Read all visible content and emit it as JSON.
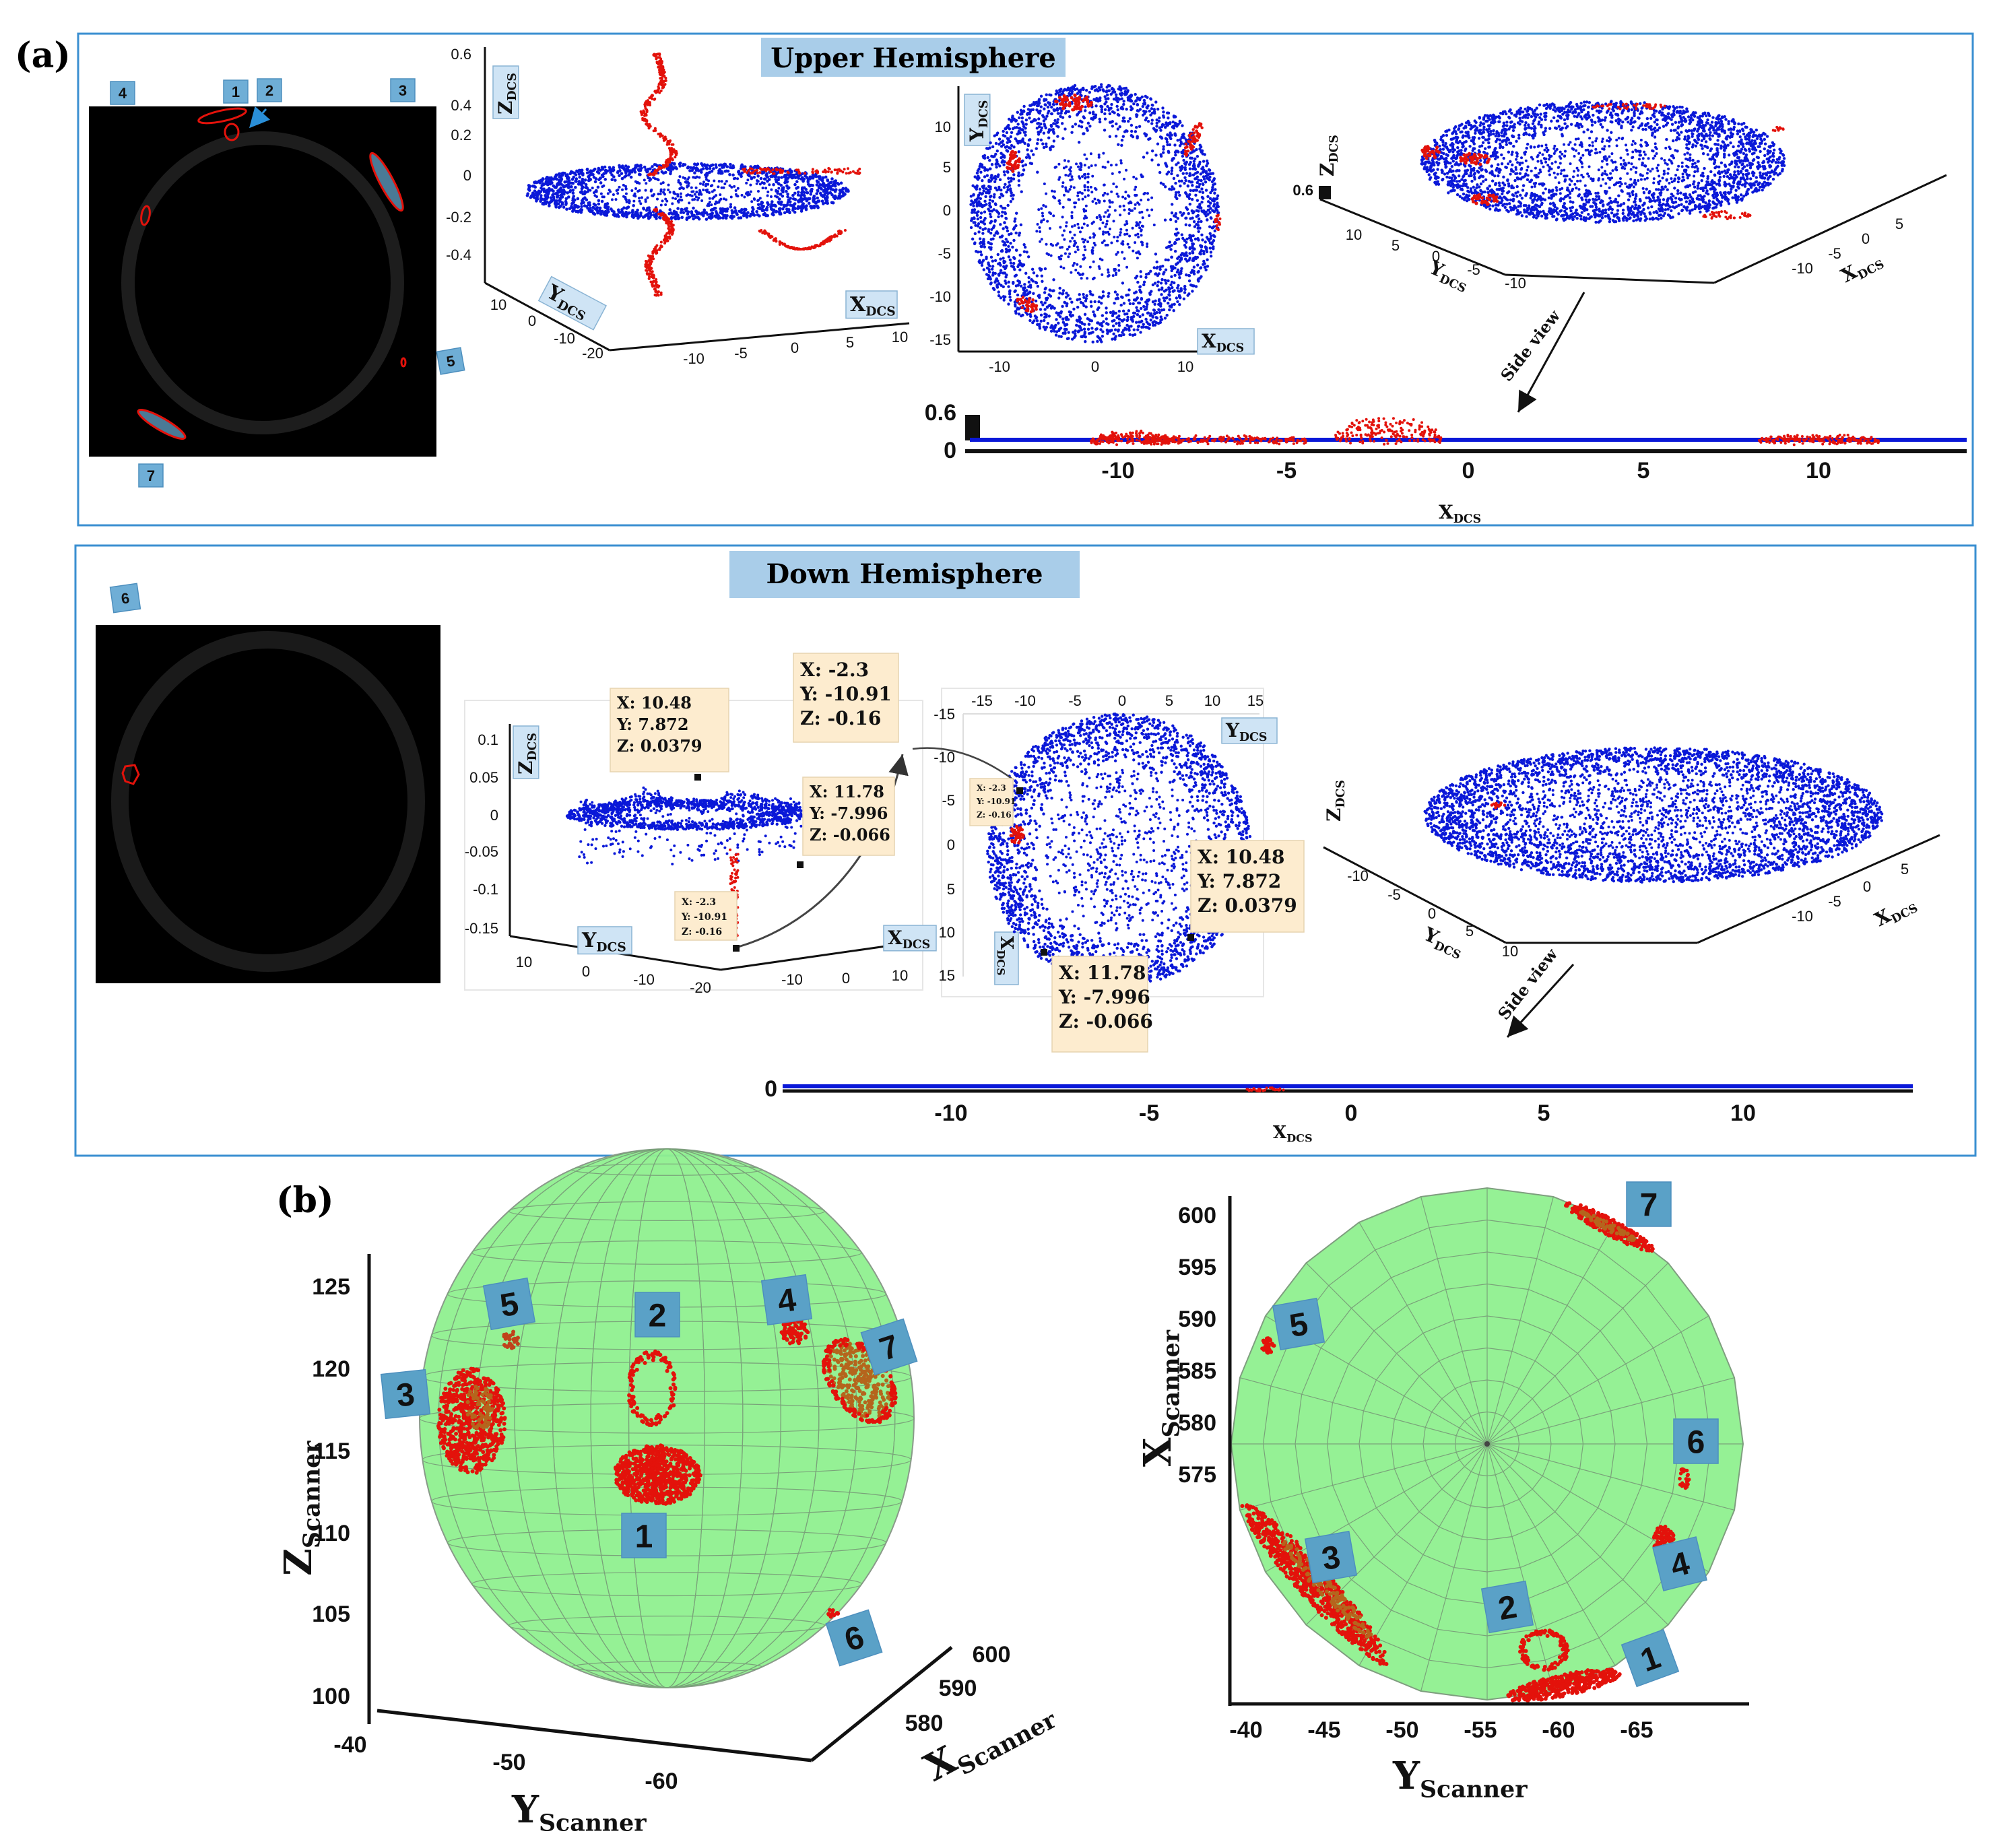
{
  "panel_a": {
    "label": "(a)",
    "upper_title": "Upper Hemisphere",
    "down_title": "Down Hemisphere",
    "upper_badges": [
      "4",
      "1",
      "2",
      "3",
      "5",
      "7"
    ],
    "down_badges": [
      "6"
    ],
    "side_view": "Side view"
  },
  "upper": {
    "plot3d": {
      "z_label": "Z",
      "z_sub": "DCS",
      "z_ticks": [
        "0.6",
        "0.4",
        "0.2",
        "0",
        "-0.2",
        "-0.4"
      ],
      "y_label": "Y",
      "y_sub": "DCS",
      "y_ticks": [
        "10",
        "0",
        "-10",
        "-20"
      ],
      "x_label": "X",
      "x_sub": "DCS",
      "x_ticks": [
        "-10",
        "-5",
        "0",
        "5",
        "10"
      ]
    },
    "top_view": {
      "y_label": "Y",
      "y_sub": "DCS",
      "y_ticks": [
        "10",
        "5",
        "0",
        "-5",
        "-10",
        "-15"
      ],
      "x_label": "X",
      "x_sub": "DCS",
      "x_ticks": [
        "-10",
        "0",
        "10"
      ]
    },
    "persp": {
      "z_label": "Z",
      "z_sub": "DCS",
      "z_tick": "0.6",
      "y_label": "Y",
      "y_sub": "DCS",
      "y_ticks": [
        "10",
        "5",
        "0",
        "-5",
        "-10"
      ],
      "x_label": "X",
      "x_sub": "DCS",
      "x_ticks": [
        "5",
        "0",
        "-5",
        "-10"
      ]
    },
    "side": {
      "y_ticks": [
        "0.6",
        "0"
      ],
      "x_ticks": [
        "-10",
        "-5",
        "0",
        "5",
        "10"
      ],
      "x_label": "X",
      "x_sub": "DCS"
    }
  },
  "down": {
    "plot3d": {
      "z_label": "Z",
      "z_sub": "DCS",
      "z_ticks": [
        "0.1",
        "0.05",
        "0",
        "-0.05",
        "-0.1",
        "-0.15"
      ],
      "y_label": "Y",
      "y_sub": "DCS",
      "y_ticks": [
        "10",
        "0",
        "-10",
        "-20"
      ],
      "x_label": "X",
      "x_sub": "DCS",
      "x_ticks": [
        "-10",
        "0",
        "10"
      ]
    },
    "top_view": {
      "y_label": "Y",
      "y_sub": "DCS",
      "y_ticks": [
        "-15",
        "-10",
        "-5",
        "0",
        "5",
        "10",
        "15"
      ],
      "x_label": "X",
      "x_sub": "DCS",
      "x_ticks": [
        "-15",
        "-10",
        "-5",
        "0",
        "5",
        "10",
        "15"
      ]
    },
    "persp": {
      "z_label": "Z",
      "z_sub": "DCS",
      "y_label": "Y",
      "y_sub": "DCS",
      "y_ticks": [
        "-10",
        "-5",
        "0",
        "5",
        "10"
      ],
      "x_label": "X",
      "x_sub": "DCS",
      "x_ticks": [
        "5",
        "0",
        "-5",
        "-10"
      ]
    },
    "side": {
      "y_ticks": [
        "0"
      ],
      "x_ticks": [
        "-10",
        "-5",
        "0",
        "5",
        "10"
      ],
      "x_label": "X",
      "x_sub": "DCS"
    },
    "datatips": {
      "tip1": [
        "X: 10.48",
        "Y: 7.872",
        "Z: 0.0379"
      ],
      "tip2": [
        "X: 11.78",
        "Y: -7.996",
        "Z: -0.066"
      ],
      "tip3": [
        "X: -2.3",
        "Y: -10.91",
        "Z: -0.16"
      ],
      "tip4": [
        "X: -2.3",
        "Y: -10.91",
        "Z: -0.16"
      ],
      "tip5": [
        "X: 10.48",
        "Y: 7.872",
        "Z: 0.0379"
      ],
      "tip6": [
        "X: 11.78",
        "Y: -7.996",
        "Z: -0.066"
      ]
    }
  },
  "panel_b": {
    "label": "(b)",
    "left": {
      "z_label": "Z",
      "z_sub": "Scanner",
      "z_ticks": [
        "125",
        "120",
        "115",
        "110",
        "105",
        "100"
      ],
      "y_label": "Y",
      "y_sub": "Scanner",
      "y_ticks": [
        "-40",
        "-50",
        "-60"
      ],
      "x_label": "X",
      "x_sub": "Scanner",
      "x_ticks": [
        "600",
        "590",
        "580"
      ],
      "badges": [
        "5",
        "2",
        "4",
        "7",
        "3",
        "1",
        "6"
      ]
    },
    "right": {
      "x_label": "X",
      "x_sub": "Scanner",
      "x_ticks": [
        "600",
        "595",
        "590",
        "585",
        "580",
        "575"
      ],
      "y_label": "Y",
      "y_sub": "Scanner",
      "y_ticks": [
        "-40",
        "-45",
        "-50",
        "-55",
        "-60",
        "-65"
      ],
      "badges": [
        "7",
        "5",
        "6",
        "3",
        "4",
        "2",
        "1"
      ]
    }
  },
  "colors": {
    "frame": "#3a8fd1",
    "title_bg": "#a9cde9",
    "badge_bg": "#6faed6",
    "badge_bg_b": "#5aa1c7",
    "blue_pts": "#0a18d8",
    "red_pts": "#e3120b",
    "sphere": "#8ff08f",
    "tip_bg": "#fdeccf"
  }
}
